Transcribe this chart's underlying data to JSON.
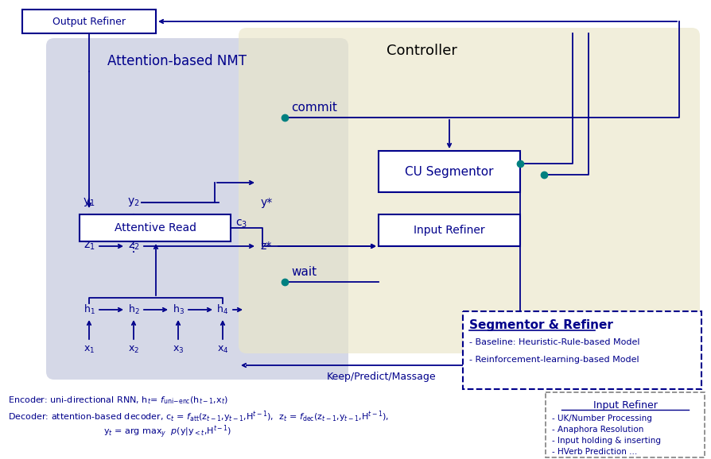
{
  "fig_width": 8.94,
  "fig_height": 5.78,
  "bg_color": "#ffffff",
  "dark_blue": "#00008B",
  "teal": "#008080",
  "title_nmt": "Attention-based NMT",
  "title_ctrl": "Controller",
  "box_output_refiner": "Output Refiner",
  "box_attentive_read": "Attentive Read",
  "box_cu_segmentor": "CU Segmentor",
  "box_input_refiner": "Input Refiner",
  "label_commit": "commit",
  "label_wait": "wait",
  "label_keep": "Keep/Predict/Massage",
  "seg_refiner_title": "Segmentor & Refiner",
  "seg_refiner_items": [
    "Baseline: Heuristic-Rule-based Model",
    "Reinforcement-learning-based Model"
  ],
  "input_refiner_title": "Input Refiner",
  "input_refiner_items": [
    "UK/Number Processing",
    "Anaphora Resolution",
    "Input holding & inserting",
    "HVerb Prediction ..."
  ]
}
